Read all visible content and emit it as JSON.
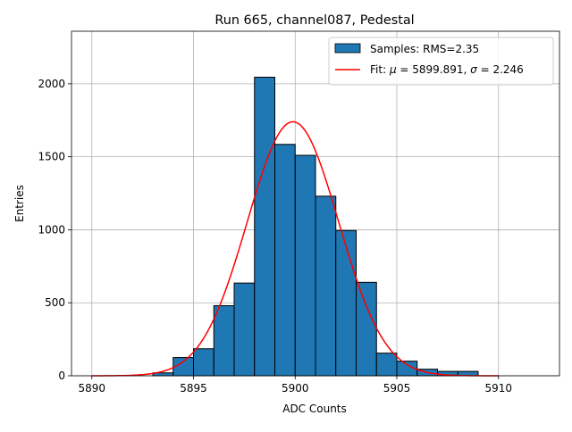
{
  "chart_data": {
    "type": "bar",
    "title": "Run 665, channel087, Pedestal",
    "xlabel": "ADC Counts",
    "ylabel": "Entries",
    "xlim": [
      5889,
      5913
    ],
    "ylim": [
      0,
      2360
    ],
    "xticks": [
      5890,
      5895,
      5900,
      5905,
      5910
    ],
    "yticks": [
      0,
      500,
      1000,
      1500,
      2000
    ],
    "grid": true,
    "legend_position": "top-right",
    "histogram": {
      "name": "Samples: RMS=2.35",
      "color": "#1f77b4",
      "edge_color": "#000000",
      "bins": [
        {
          "x0": 5893,
          "x1": 5894,
          "count": 20
        },
        {
          "x0": 5894,
          "x1": 5895,
          "count": 125
        },
        {
          "x0": 5895,
          "x1": 5896,
          "count": 185
        },
        {
          "x0": 5896,
          "x1": 5897,
          "count": 480
        },
        {
          "x0": 5897,
          "x1": 5898,
          "count": 635
        },
        {
          "x0": 5898,
          "x1": 5899,
          "count": 2045
        },
        {
          "x0": 5899,
          "x1": 5900,
          "count": 1585
        },
        {
          "x0": 5900,
          "x1": 5901,
          "count": 1510
        },
        {
          "x0": 5901,
          "x1": 5902,
          "count": 1230
        },
        {
          "x0": 5902,
          "x1": 5903,
          "count": 995
        },
        {
          "x0": 5903,
          "x1": 5904,
          "count": 640
        },
        {
          "x0": 5904,
          "x1": 5905,
          "count": 155
        },
        {
          "x0": 5905,
          "x1": 5906,
          "count": 100
        },
        {
          "x0": 5906,
          "x1": 5907,
          "count": 45
        },
        {
          "x0": 5907,
          "x1": 5908,
          "count": 30
        },
        {
          "x0": 5908,
          "x1": 5909,
          "count": 30
        }
      ]
    },
    "fit": {
      "name_prefix": "Fit: ",
      "mu_symbol": "μ",
      "name_mid": " = 5899.891, ",
      "sigma_symbol": "σ",
      "name_suffix": " = 2.246",
      "color": "#ff0000",
      "mu": 5899.891,
      "sigma": 2.246,
      "amplitude": 1740,
      "x_range": [
        5890,
        5910
      ]
    }
  }
}
